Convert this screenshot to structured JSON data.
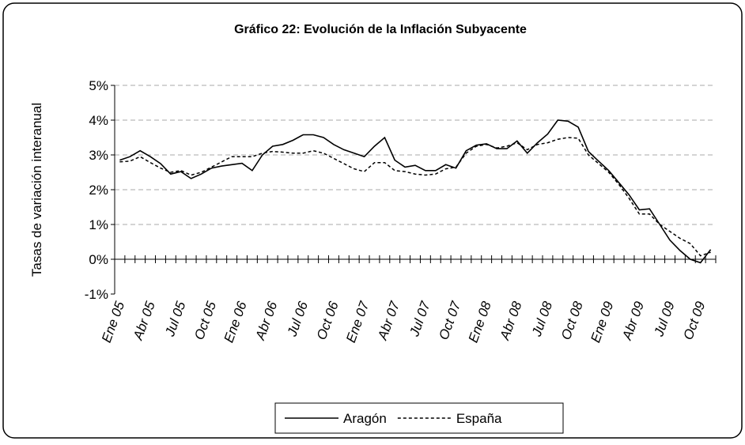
{
  "chart_data": {
    "type": "line",
    "title": "Gráfico 22: Evolución de la Inflación Subyacente",
    "y_label": "Tasas de variación interanual",
    "categories": [
      "Ene 05",
      null,
      null,
      "Abr 05",
      null,
      null,
      "Jul 05",
      null,
      null,
      "Oct 05",
      null,
      null,
      "Ene 06",
      null,
      null,
      "Abr 06",
      null,
      null,
      "Jul 06",
      null,
      null,
      "Oct 06",
      null,
      null,
      "Ene 07",
      null,
      null,
      "Abr 07",
      null,
      null,
      "Jul 07",
      null,
      null,
      "Oct 07",
      null,
      null,
      "Ene 08",
      null,
      null,
      "Abr 08",
      null,
      null,
      "Jul 08",
      null,
      null,
      "Oct 08",
      null,
      null,
      "Ene 09",
      null,
      null,
      "Abr 09",
      null,
      null,
      "Jul 09",
      null,
      null,
      "Oct 09",
      null
    ],
    "series": [
      {
        "name": "Aragón",
        "color": "#000000",
        "dash": "solid",
        "values": [
          2.85,
          2.95,
          3.12,
          2.95,
          2.75,
          2.45,
          2.52,
          2.32,
          2.45,
          2.62,
          2.68,
          2.72,
          2.76,
          2.55,
          3.0,
          3.25,
          3.3,
          3.42,
          3.58,
          3.58,
          3.5,
          3.3,
          3.15,
          3.05,
          2.95,
          3.25,
          3.5,
          2.85,
          2.65,
          2.7,
          2.55,
          2.55,
          2.72,
          2.62,
          3.12,
          3.28,
          3.32,
          3.18,
          3.18,
          3.4,
          3.05,
          3.35,
          3.6,
          4.0,
          3.97,
          3.8,
          3.1,
          2.82,
          2.55,
          2.2,
          1.85,
          1.42,
          1.45,
          1.0,
          0.55,
          0.25,
          0.0,
          -0.1,
          0.28
        ]
      },
      {
        "name": "España",
        "color": "#000000",
        "dash": "dashed",
        "values": [
          2.8,
          2.82,
          2.95,
          2.78,
          2.62,
          2.5,
          2.55,
          2.42,
          2.5,
          2.65,
          2.8,
          2.95,
          2.95,
          2.95,
          3.05,
          3.1,
          3.08,
          3.05,
          3.05,
          3.12,
          3.05,
          2.9,
          2.75,
          2.6,
          2.52,
          2.78,
          2.78,
          2.55,
          2.52,
          2.45,
          2.42,
          2.45,
          2.6,
          2.65,
          3.05,
          3.25,
          3.3,
          3.2,
          3.25,
          3.35,
          3.15,
          3.3,
          3.35,
          3.45,
          3.5,
          3.48,
          3.0,
          2.75,
          2.5,
          2.15,
          1.75,
          1.3,
          1.3,
          1.0,
          0.8,
          0.6,
          0.45,
          0.1,
          0.2
        ]
      }
    ],
    "ylim": [
      -1,
      5
    ],
    "yticks": [
      {
        "value": -1,
        "label": "-1%"
      },
      {
        "value": 0,
        "label": "0%"
      },
      {
        "value": 1,
        "label": "1%"
      },
      {
        "value": 2,
        "label": "2%"
      },
      {
        "value": 3,
        "label": "3%"
      },
      {
        "value": 4,
        "label": "4%"
      },
      {
        "value": 5,
        "label": "5%"
      }
    ],
    "grid": true,
    "legend": "bottom"
  }
}
